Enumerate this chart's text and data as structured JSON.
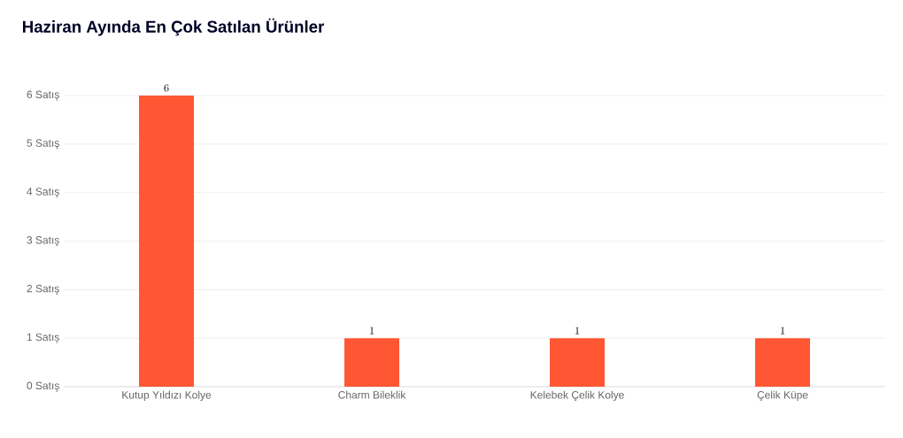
{
  "chart_data": {
    "type": "bar",
    "title": "Haziran Ayında En Çok Satılan Ürünler",
    "categories": [
      "Kutup Yıldızı Kolye",
      "Charm Bileklik",
      "Kelebek Çelik Kolye",
      "Çelik Küpe"
    ],
    "values": [
      6,
      1,
      1,
      1
    ],
    "color": "#ff5733",
    "ylim": [
      0,
      6
    ],
    "yticks": [
      {
        "value": 0,
        "label": "0 Satış"
      },
      {
        "value": 1,
        "label": "1 Satış"
      },
      {
        "value": 2,
        "label": "2 Satış"
      },
      {
        "value": 3,
        "label": "3 Satış"
      },
      {
        "value": 4,
        "label": "4 Satış"
      },
      {
        "value": 5,
        "label": "5 Satış"
      },
      {
        "value": 6,
        "label": "6 Satış"
      }
    ],
    "grid": "y",
    "data_labels": true
  }
}
